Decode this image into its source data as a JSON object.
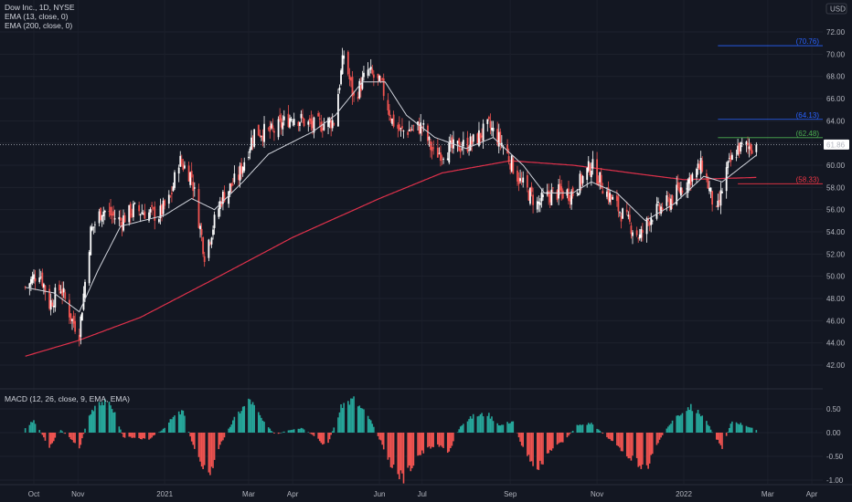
{
  "header": {
    "symbol_line": "Dow Inc., 1D, NYSE",
    "ema_fast_label": "EMA (13, close, 0)",
    "ema_slow_label": "EMA (200, close, 0)",
    "currency": "USD"
  },
  "macd": {
    "label": "MACD (12, 26, close, 9, EMA, EMA)"
  },
  "colors": {
    "background": "#131722",
    "up": "#ffffff",
    "down": "#ef5350",
    "ema_fast": "#d1d4dc",
    "ema_slow": "#e0314b",
    "hist_up": "#26a69a",
    "hist_down": "#ef5350",
    "level_blue": "#2962ff",
    "level_green": "#4caf50",
    "level_red": "#f23645"
  },
  "chart_data": [
    {
      "type": "candlestick",
      "ylim": [
        40,
        73
      ],
      "yticks": [
        "42.00",
        "44.00",
        "46.00",
        "48.00",
        "50.00",
        "52.00",
        "54.00",
        "56.00",
        "58.00",
        "60.00",
        "62.00",
        "64.00",
        "66.00",
        "68.00",
        "70.00",
        "72.00"
      ],
      "xticks": [
        "Oct",
        "Nov",
        "2021",
        "Mar",
        "Apr",
        "Jun",
        "Jul",
        "Sep",
        "Nov",
        "2022",
        "Mar",
        "Apr"
      ],
      "xtick_dates": [
        "2020-10-01",
        "2020-11-01",
        "2021-01-01",
        "2021-03-01",
        "2021-04-01",
        "2021-06-01",
        "2021-07-01",
        "2021-09-01",
        "2021-11-01",
        "2022-01-01",
        "2022-03-01",
        "2022-04-01"
      ],
      "date_range": [
        "2020-09-25",
        "2022-02-21"
      ],
      "close_keypoints": [
        [
          "2020-09-25",
          49.0
        ],
        [
          "2020-10-05",
          50.5
        ],
        [
          "2020-10-12",
          47.5
        ],
        [
          "2020-10-20",
          49.0
        ],
        [
          "2020-10-28",
          46.0
        ],
        [
          "2020-11-02",
          45.0
        ],
        [
          "2020-11-10",
          54.0
        ],
        [
          "2020-11-18",
          56.0
        ],
        [
          "2020-12-01",
          55.0
        ],
        [
          "2020-12-10",
          56.0
        ],
        [
          "2020-12-28",
          55.5
        ],
        [
          "2021-01-05",
          57.0
        ],
        [
          "2021-01-11",
          60.5
        ],
        [
          "2021-01-20",
          59.0
        ],
        [
          "2021-01-29",
          52.0
        ],
        [
          "2021-02-10",
          57.0
        ],
        [
          "2021-02-22",
          59.0
        ],
        [
          "2021-03-05",
          63.0
        ],
        [
          "2021-03-18",
          63.0
        ],
        [
          "2021-04-01",
          64.5
        ],
        [
          "2021-04-15",
          63.5
        ],
        [
          "2021-04-30",
          64.0
        ],
        [
          "2021-05-07",
          70.0
        ],
        [
          "2021-05-14",
          66.0
        ],
        [
          "2021-05-24",
          68.5
        ],
        [
          "2021-06-03",
          67.0
        ],
        [
          "2021-06-10",
          64.0
        ],
        [
          "2021-06-16",
          63.0
        ],
        [
          "2021-07-01",
          63.5
        ],
        [
          "2021-07-09",
          61.0
        ],
        [
          "2021-07-22",
          61.5
        ],
        [
          "2021-08-05",
          62.0
        ],
        [
          "2021-08-17",
          63.5
        ],
        [
          "2021-08-26",
          62.0
        ],
        [
          "2021-09-08",
          58.5
        ],
        [
          "2021-09-20",
          56.5
        ],
        [
          "2021-10-01",
          57.5
        ],
        [
          "2021-10-15",
          57.5
        ],
        [
          "2021-10-28",
          60.0
        ],
        [
          "2021-11-08",
          57.5
        ],
        [
          "2021-11-22",
          55.0
        ],
        [
          "2021-12-01",
          53.5
        ],
        [
          "2021-12-09",
          55.5
        ],
        [
          "2021-12-20",
          56.5
        ],
        [
          "2022-01-03",
          58.5
        ],
        [
          "2022-01-14",
          60.0
        ],
        [
          "2022-01-24",
          55.5
        ],
        [
          "2022-01-31",
          59.5
        ],
        [
          "2022-02-08",
          61.5
        ],
        [
          "2022-02-21",
          61.86
        ]
      ],
      "ema13_keypoints": [
        [
          "2020-09-25",
          49.0
        ],
        [
          "2020-10-15",
          48.5
        ],
        [
          "2020-11-02",
          46.8
        ],
        [
          "2020-11-15",
          50.5
        ],
        [
          "2020-12-01",
          54.5
        ],
        [
          "2021-01-01",
          55.5
        ],
        [
          "2021-01-20",
          57.0
        ],
        [
          "2021-02-05",
          56.0
        ],
        [
          "2021-02-25",
          58.5
        ],
        [
          "2021-03-15",
          61.0
        ],
        [
          "2021-04-15",
          63.0
        ],
        [
          "2021-05-01",
          64.5
        ],
        [
          "2021-05-20",
          67.5
        ],
        [
          "2021-06-05",
          67.5
        ],
        [
          "2021-06-20",
          64.5
        ],
        [
          "2021-07-10",
          62.5
        ],
        [
          "2021-08-01",
          61.5
        ],
        [
          "2021-08-20",
          62.5
        ],
        [
          "2021-09-10",
          60.0
        ],
        [
          "2021-09-25",
          57.5
        ],
        [
          "2021-10-15",
          57.5
        ],
        [
          "2021-10-28",
          58.5
        ],
        [
          "2021-11-15",
          57.5
        ],
        [
          "2021-12-05",
          55.0
        ],
        [
          "2021-12-25",
          56.5
        ],
        [
          "2022-01-15",
          59.0
        ],
        [
          "2022-01-28",
          58.5
        ],
        [
          "2022-02-21",
          60.9
        ]
      ],
      "ema200_keypoints": [
        [
          "2020-09-25",
          42.8
        ],
        [
          "2020-11-01",
          44.2
        ],
        [
          "2020-12-15",
          46.3
        ],
        [
          "2021-02-01",
          49.5
        ],
        [
          "2021-04-01",
          53.5
        ],
        [
          "2021-06-01",
          57.0
        ],
        [
          "2021-07-15",
          59.3
        ],
        [
          "2021-09-01",
          60.4
        ],
        [
          "2021-10-15",
          60.0
        ],
        [
          "2021-12-01",
          59.2
        ],
        [
          "2022-01-01",
          58.7
        ],
        [
          "2022-02-21",
          58.9
        ]
      ],
      "last_price": 61.86,
      "levels": [
        {
          "value": 70.76,
          "label": "(70.76)",
          "color": "#2962ff",
          "from": "2022-01-25"
        },
        {
          "value": 64.13,
          "label": "(64.13)",
          "color": "#2962ff",
          "from": "2022-01-25"
        },
        {
          "value": 62.48,
          "label": "(62.48)",
          "color": "#4caf50",
          "from": "2022-01-25"
        },
        {
          "value": 58.33,
          "label": "(58.33)",
          "color": "#f23645",
          "from": "2022-02-08"
        }
      ],
      "last_price_label": "61.86"
    },
    {
      "type": "bar",
      "name": "MACD histogram",
      "ylim": [
        -1.1,
        0.75
      ],
      "yticks": [
        "0.50",
        "0.00",
        "-0.50",
        "-1.00"
      ],
      "hist_keypoints": [
        [
          "2020-09-25",
          0.1
        ],
        [
          "2020-10-01",
          0.25
        ],
        [
          "2020-10-07",
          -0.05
        ],
        [
          "2020-10-12",
          -0.3
        ],
        [
          "2020-10-20",
          0.05
        ],
        [
          "2020-10-28",
          -0.15
        ],
        [
          "2020-11-02",
          -0.35
        ],
        [
          "2020-11-08",
          0.3
        ],
        [
          "2020-11-15",
          0.7
        ],
        [
          "2020-11-25",
          0.55
        ],
        [
          "2020-12-03",
          -0.1
        ],
        [
          "2020-12-12",
          -0.1
        ],
        [
          "2020-12-20",
          -0.15
        ],
        [
          "2020-12-30",
          0.05
        ],
        [
          "2021-01-08",
          0.35
        ],
        [
          "2021-01-14",
          0.45
        ],
        [
          "2021-01-20",
          -0.2
        ],
        [
          "2021-02-01",
          -0.95
        ],
        [
          "2021-02-10",
          -0.2
        ],
        [
          "2021-02-20",
          0.35
        ],
        [
          "2021-03-02",
          0.7
        ],
        [
          "2021-03-12",
          0.2
        ],
        [
          "2021-03-20",
          -0.05
        ],
        [
          "2021-03-28",
          0.05
        ],
        [
          "2021-04-08",
          0.1
        ],
        [
          "2021-04-15",
          -0.05
        ],
        [
          "2021-04-25",
          -0.3
        ],
        [
          "2021-05-06",
          0.6
        ],
        [
          "2021-05-14",
          0.7
        ],
        [
          "2021-05-25",
          0.3
        ],
        [
          "2021-06-03",
          -0.25
        ],
        [
          "2021-06-10",
          -0.7
        ],
        [
          "2021-06-18",
          -1.0
        ],
        [
          "2021-06-28",
          -0.5
        ],
        [
          "2021-07-10",
          -0.25
        ],
        [
          "2021-07-20",
          -0.4
        ],
        [
          "2021-07-28",
          0.15
        ],
        [
          "2021-08-06",
          0.35
        ],
        [
          "2021-08-16",
          0.4
        ],
        [
          "2021-08-25",
          0.15
        ],
        [
          "2021-09-03",
          0.25
        ],
        [
          "2021-09-10",
          -0.35
        ],
        [
          "2021-09-20",
          -0.75
        ],
        [
          "2021-09-30",
          -0.35
        ],
        [
          "2021-10-08",
          -0.2
        ],
        [
          "2021-10-18",
          0.15
        ],
        [
          "2021-10-28",
          0.2
        ],
        [
          "2021-11-08",
          -0.1
        ],
        [
          "2021-11-18",
          -0.35
        ],
        [
          "2021-11-28",
          -0.6
        ],
        [
          "2021-12-06",
          -0.75
        ],
        [
          "2021-12-15",
          -0.15
        ],
        [
          "2021-12-25",
          0.3
        ],
        [
          "2022-01-05",
          0.55
        ],
        [
          "2022-01-15",
          0.35
        ],
        [
          "2022-01-22",
          -0.05
        ],
        [
          "2022-01-28",
          -0.3
        ],
        [
          "2022-02-04",
          0.25
        ],
        [
          "2022-02-14",
          0.15
        ],
        [
          "2022-02-21",
          0.05
        ]
      ]
    }
  ]
}
